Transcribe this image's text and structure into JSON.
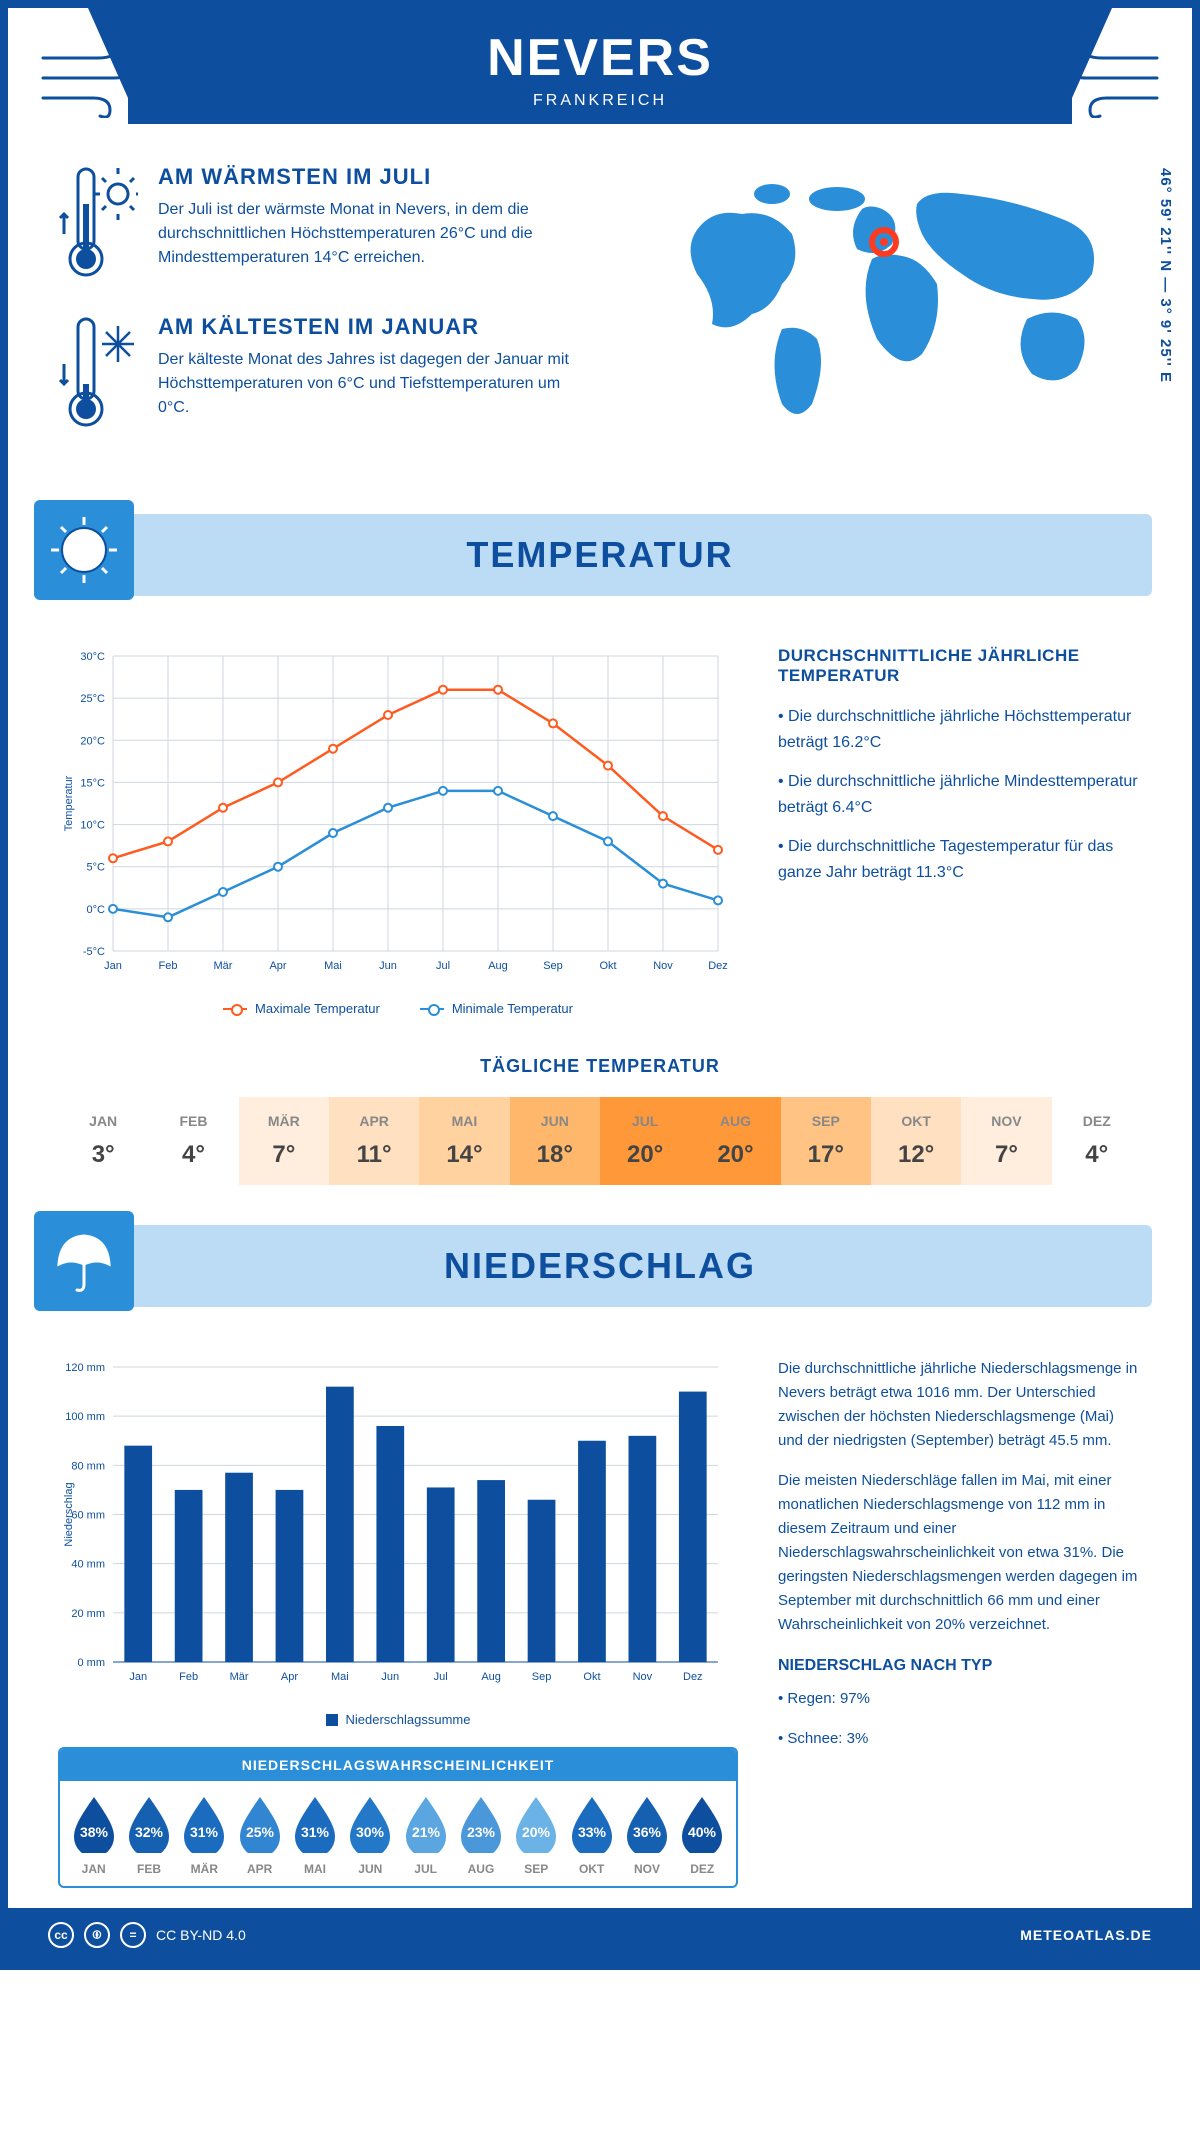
{
  "header": {
    "city": "NEVERS",
    "country": "FRANKREICH"
  },
  "coords": "46° 59' 21'' N — 3° 9' 25'' E",
  "warmest": {
    "title": "AM WÄRMSTEN IM JULI",
    "text": "Der Juli ist der wärmste Monat in Nevers, in dem die durchschnittlichen Höchsttemperaturen 26°C und die Mindesttemperaturen 14°C erreichen."
  },
  "coldest": {
    "title": "AM KÄLTESTEN IM JANUAR",
    "text": "Der kälteste Monat des Jahres ist dagegen der Januar mit Höchsttemperaturen von 6°C und Tiefsttemperaturen um 0°C."
  },
  "sections": {
    "temp": "TEMPERATUR",
    "precip": "NIEDERSCHLAG"
  },
  "temp_chart": {
    "type": "line",
    "months": [
      "Jan",
      "Feb",
      "Mär",
      "Apr",
      "Mai",
      "Jun",
      "Jul",
      "Aug",
      "Sep",
      "Okt",
      "Nov",
      "Dez"
    ],
    "max_values": [
      6,
      8,
      12,
      15,
      19,
      23,
      26,
      26,
      22,
      17,
      11,
      7
    ],
    "min_values": [
      0,
      -1,
      2,
      5,
      9,
      12,
      14,
      14,
      11,
      8,
      3,
      1
    ],
    "max_color": "#ff5a1f",
    "min_color": "#2a8ed8",
    "ylim": [
      -5,
      30
    ],
    "ytick_step": 5,
    "ylabel": "Temperatur",
    "grid_color": "#cfd6de",
    "legend_max": "Maximale Temperatur",
    "legend_min": "Minimale Temperatur"
  },
  "temp_info": {
    "title": "DURCHSCHNITTLICHE JÄHRLICHE TEMPERATUR",
    "l1": "• Die durchschnittliche jährliche Höchsttemperatur beträgt 16.2°C",
    "l2": "• Die durchschnittliche jährliche Mindesttemperatur beträgt 6.4°C",
    "l3": "• Die durchschnittliche Tagestemperatur für das ganze Jahr beträgt 11.3°C"
  },
  "daily": {
    "title": "TÄGLICHE TEMPERATUR",
    "months": [
      "JAN",
      "FEB",
      "MÄR",
      "APR",
      "MAI",
      "JUN",
      "JUL",
      "AUG",
      "SEP",
      "OKT",
      "NOV",
      "DEZ"
    ],
    "values": [
      "3°",
      "4°",
      "7°",
      "11°",
      "14°",
      "18°",
      "20°",
      "20°",
      "17°",
      "12°",
      "7°",
      "4°"
    ],
    "colors": [
      "#ffffff",
      "#ffffff",
      "#ffeedd",
      "#ffe1c1",
      "#ffd2a0",
      "#ffb86b",
      "#ff9838",
      "#ff9838",
      "#ffc484",
      "#ffe1c1",
      "#ffeedd",
      "#ffffff"
    ]
  },
  "precip_chart": {
    "type": "bar",
    "months": [
      "Jan",
      "Feb",
      "Mär",
      "Apr",
      "Mai",
      "Jun",
      "Jul",
      "Aug",
      "Sep",
      "Okt",
      "Nov",
      "Dez"
    ],
    "values": [
      88,
      70,
      77,
      70,
      112,
      96,
      71,
      74,
      66,
      90,
      92,
      110
    ],
    "bar_color": "#0d4f9e",
    "ylim": [
      0,
      120
    ],
    "ytick_step": 20,
    "ylabel": "Niederschlag",
    "legend": "Niederschlagssumme",
    "grid_color": "#cfd6de"
  },
  "precip_info": {
    "p1": "Die durchschnittliche jährliche Niederschlagsmenge in Nevers beträgt etwa 1016 mm. Der Unterschied zwischen der höchsten Niederschlagsmenge (Mai) und der niedrigsten (September) beträgt 45.5 mm.",
    "p2": "Die meisten Niederschläge fallen im Mai, mit einer monatlichen Niederschlagsmenge von 112 mm in diesem Zeitraum und einer Niederschlagswahrscheinlichkeit von etwa 31%. Die geringsten Niederschlagsmengen werden dagegen im September mit durchschnittlich 66 mm und einer Wahrscheinlichkeit von 20% verzeichnet.",
    "type_title": "NIEDERSCHLAG NACH TYP",
    "type1": "• Regen: 97%",
    "type2": "• Schnee: 3%"
  },
  "prob": {
    "title": "NIEDERSCHLAGSWAHRSCHEINLICHKEIT",
    "months": [
      "JAN",
      "FEB",
      "MÄR",
      "APR",
      "MAI",
      "JUN",
      "JUL",
      "AUG",
      "SEP",
      "OKT",
      "NOV",
      "DEZ"
    ],
    "values": [
      "38%",
      "32%",
      "31%",
      "25%",
      "31%",
      "30%",
      "21%",
      "23%",
      "20%",
      "33%",
      "36%",
      "40%"
    ],
    "colors": [
      "#0d4f9e",
      "#1560b0",
      "#1b6cbf",
      "#3286d1",
      "#1b6cbf",
      "#2478c8",
      "#5ba6e0",
      "#4a98da",
      "#6bb2e6",
      "#1b6cbf",
      "#1560b0",
      "#0d4f9e"
    ]
  },
  "footer": {
    "license": "CC BY-ND 4.0",
    "site": "METEOATLAS.DE"
  }
}
